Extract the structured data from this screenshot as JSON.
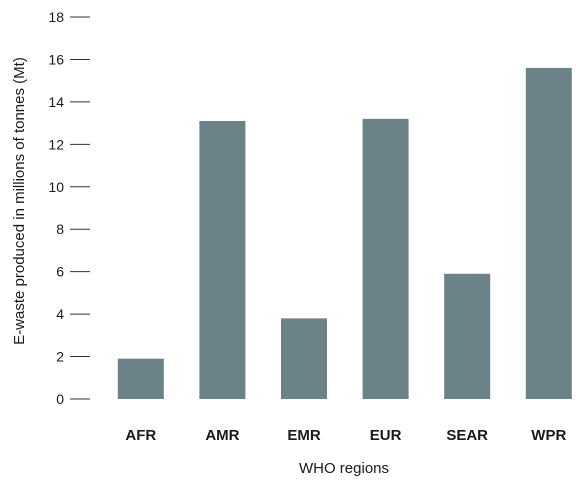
{
  "chart_data": {
    "type": "bar",
    "title": "",
    "xlabel": "WHO regions",
    "ylabel": "E-waste produced in millions of tonnes (Mt)",
    "categories": [
      "AFR",
      "AMR",
      "EMR",
      "EUR",
      "SEAR",
      "WPR"
    ],
    "values": [
      1.9,
      13.1,
      3.8,
      13.2,
      5.9,
      15.6
    ],
    "ylim": [
      0,
      18
    ],
    "yticks": [
      0,
      2,
      4,
      6,
      8,
      10,
      12,
      14,
      16,
      18
    ],
    "ytick_labels": [
      "0",
      "2",
      "4",
      "6",
      "8",
      "10",
      "12",
      "14",
      "16",
      "18"
    ],
    "bar_color": "#6b8288",
    "grid": false,
    "legend": "none"
  }
}
